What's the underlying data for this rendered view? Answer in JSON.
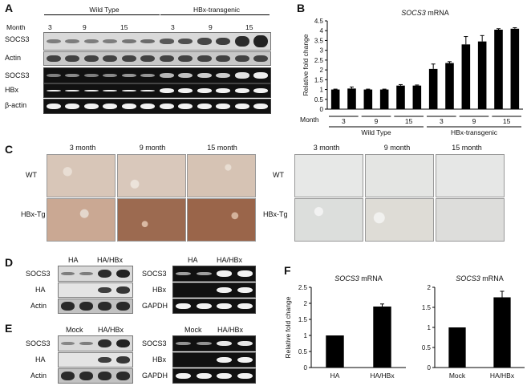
{
  "panels": {
    "A": {
      "label": "A",
      "month_label": "Month",
      "groups": [
        "Wild Type",
        "HBx-transgenic"
      ],
      "months": [
        "3",
        "9",
        "15",
        "3",
        "9",
        "15"
      ],
      "rows": [
        "SOCS3",
        "Actin",
        "SOCS3",
        "HBx",
        "β-actin"
      ]
    },
    "B": {
      "label": "B"
    },
    "C": {
      "label": "C",
      "columns": [
        "3 month",
        "9 month",
        "15 month"
      ],
      "rows": [
        "WT",
        "HBx-Tg"
      ]
    },
    "D": {
      "label": "D",
      "headers": [
        "HA",
        "HA/HBx"
      ],
      "left_rows": [
        "SOCS3",
        "HA",
        "Actin"
      ],
      "right_rows": [
        "SOCS3",
        "HBx",
        "GAPDH"
      ]
    },
    "E": {
      "label": "E",
      "headers": [
        "Mock",
        "HA/HBx"
      ],
      "left_rows": [
        "SOCS3",
        "HA",
        "Actin"
      ],
      "right_rows": [
        "SOCS3",
        "HBx",
        "GAPDH"
      ]
    },
    "F": {
      "label": "F"
    }
  },
  "chart_data": [
    {
      "type": "bar",
      "title": "SOCS3 mRNA",
      "ylabel": "Relative fold change",
      "xlabel": "Month",
      "categories": [
        "3",
        "3",
        "9",
        "9",
        "15",
        "15",
        "3",
        "3",
        "9",
        "9",
        "15",
        "15"
      ],
      "tick_labels": [
        "3",
        "9",
        "15",
        "3",
        "9",
        "15"
      ],
      "groups": [
        "Wild Type",
        "HBx-transgenic"
      ],
      "values": [
        1.0,
        1.05,
        1.0,
        1.0,
        1.2,
        1.2,
        2.05,
        2.35,
        3.3,
        3.45,
        4.05,
        4.1
      ],
      "errors": [
        0.02,
        0.08,
        0.02,
        0.02,
        0.05,
        0.03,
        0.25,
        0.07,
        0.4,
        0.3,
        0.05,
        0.05
      ],
      "ylim": [
        0,
        4.5
      ],
      "yticks": [
        "0",
        "0.5",
        "1",
        "1.5",
        "2",
        "2.5",
        "3",
        "3.5",
        "4",
        "4.5"
      ]
    },
    {
      "type": "bar",
      "title": "SOCS3 mRNA",
      "ylabel": "Relative fold change",
      "categories": [
        "HA",
        "HA/HBx"
      ],
      "values": [
        1.0,
        1.9
      ],
      "errors": [
        0.0,
        0.08
      ],
      "ylim": [
        0,
        2.5
      ],
      "yticks": [
        "0",
        "0.5",
        "1",
        "1.5",
        "2",
        "2.5"
      ]
    },
    {
      "type": "bar",
      "title": "SOCS3 mRNA",
      "ylabel": "",
      "categories": [
        "Mock",
        "HA/HBx"
      ],
      "values": [
        1.0,
        1.75
      ],
      "errors": [
        0.0,
        0.15
      ],
      "ylim": [
        0,
        2
      ],
      "yticks": [
        "0",
        "0.5",
        "1",
        "1.5",
        "2"
      ]
    }
  ]
}
